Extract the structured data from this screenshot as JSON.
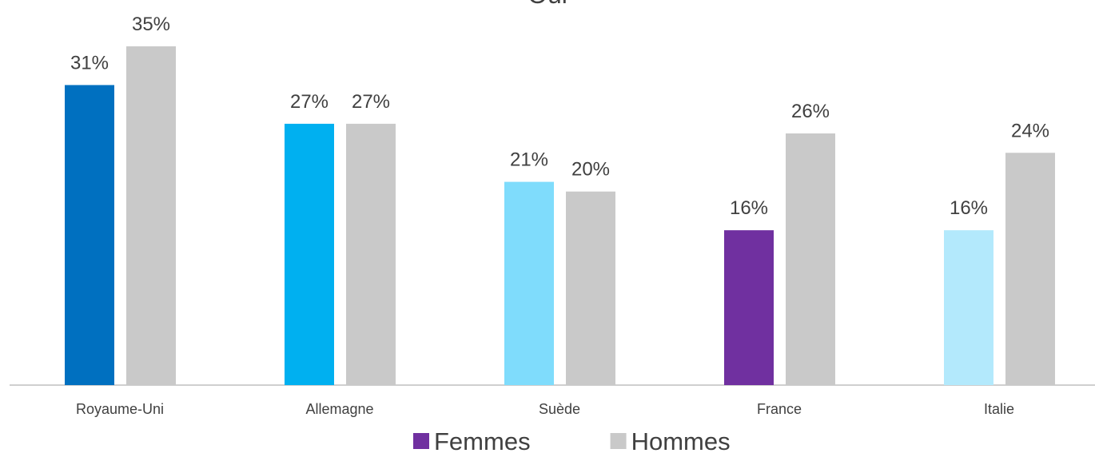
{
  "chart_data": {
    "type": "bar",
    "title": "Oui",
    "categories": [
      "Royaume-Uni",
      "Allemagne",
      "Suède",
      "France",
      "Italie"
    ],
    "series": [
      {
        "name": "Femmes",
        "color": "#7030a0",
        "colors": [
          "#0070c0",
          "#00b0f0",
          "#7fdcfc",
          "#7030a0",
          "#b3e9fc"
        ],
        "values": [
          31,
          27,
          21,
          16,
          16
        ],
        "value_labels": [
          "31%",
          "27%",
          "21%",
          "16%",
          "16%"
        ]
      },
      {
        "name": "Hommes",
        "color": "#c9c9c9",
        "values": [
          35,
          27,
          20,
          26,
          24
        ],
        "value_labels": [
          "35%",
          "27%",
          "20%",
          "26%",
          "24%"
        ]
      }
    ]
  }
}
